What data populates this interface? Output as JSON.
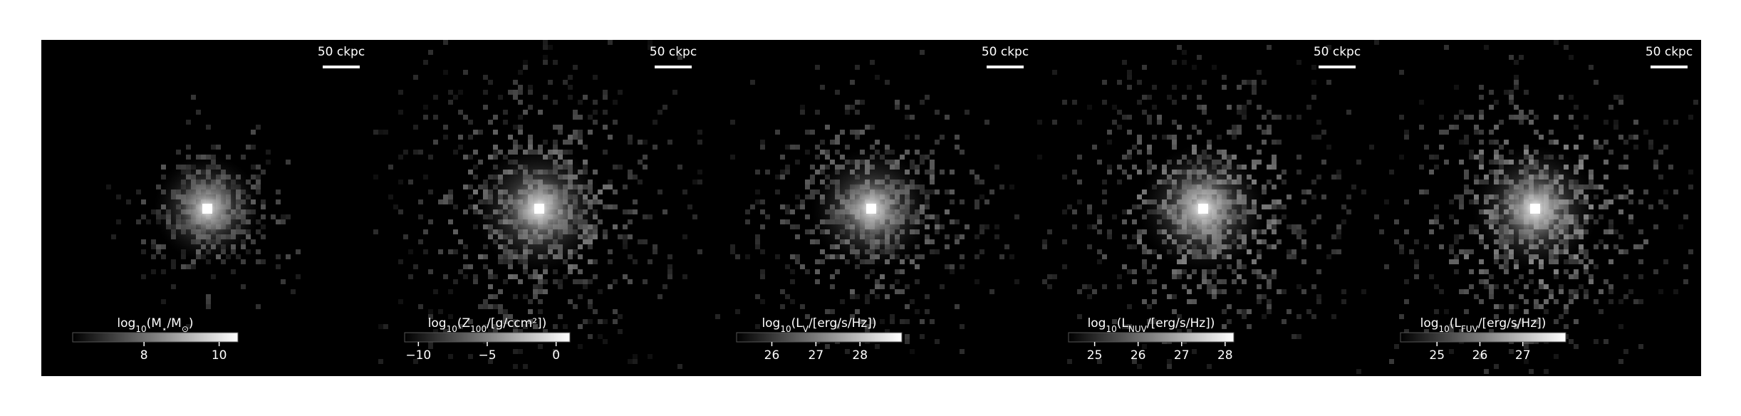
{
  "panels": [
    {
      "scale_bar": "50 ckpc",
      "colorbar": {
        "label": [
          "log",
          "10",
          "(M",
          "⋆",
          "/M",
          "⊙",
          ")"
        ],
        "clim": [
          6.1,
          10.5
        ],
        "ticks": [
          8,
          10
        ]
      }
    },
    {
      "scale_bar": "50 ckpc",
      "colorbar": {
        "label": [
          "log",
          "10",
          "(Z",
          "100",
          "/[g/ccm²])"
        ],
        "clim": [
          -11,
          1
        ],
        "ticks": [
          {
            "value": -10,
            "label": "−10"
          },
          {
            "value": -5,
            "label": "−5"
          },
          0
        ]
      }
    },
    {
      "scale_bar": "50 ckpc",
      "colorbar": {
        "label": [
          "log",
          "10",
          "(L",
          "V",
          "/[erg/s/Hz])"
        ],
        "clim": [
          25.2,
          28.95
        ],
        "ticks": [
          26,
          27,
          28
        ]
      }
    },
    {
      "scale_bar": "50 ckpc",
      "colorbar": {
        "label": [
          "log",
          "10",
          "(L",
          "NUV",
          "/[erg/s/Hz])"
        ],
        "clim": [
          24.4,
          28.2
        ],
        "ticks": [
          25,
          26,
          27,
          28
        ]
      }
    },
    {
      "scale_bar": "50 ckpc",
      "colorbar": {
        "label": [
          "log",
          "10",
          "(L",
          "FUV",
          "/[erg/s/Hz])"
        ],
        "clim": [
          24.15,
          28.0
        ],
        "ticks": [
          25,
          26,
          27
        ]
      }
    }
  ]
}
